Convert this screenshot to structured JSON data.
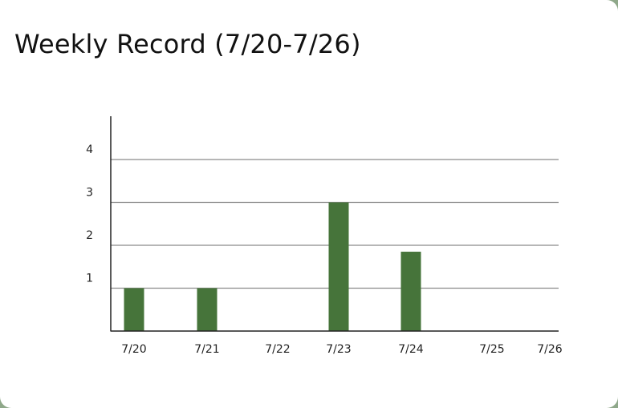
{
  "card": {
    "title": "Weekly  Record (7/20-7/26)"
  },
  "colors": {
    "bar": "#46743a",
    "grid": "#8a8a8a",
    "axis": "#222222"
  },
  "chart_data": {
    "type": "bar",
    "title": "Weekly  Record (7/20-7/26)",
    "categories": [
      "7/20",
      "7/21",
      "7/22",
      "7/23",
      "7/24",
      "7/25",
      "7/26"
    ],
    "values": [
      1,
      1,
      0,
      3,
      1.85,
      0,
      0
    ],
    "xlabel": "",
    "ylabel": "",
    "ylim": [
      0,
      5
    ],
    "yticks": [
      1,
      2,
      3,
      4
    ],
    "grid": true,
    "legend": "none"
  }
}
